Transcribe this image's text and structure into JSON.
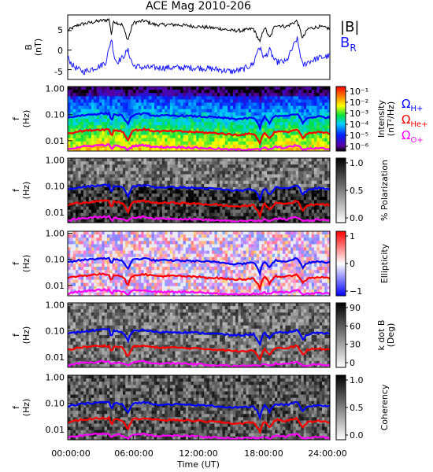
{
  "title": "ACE Mag 2010-206",
  "xaxis": {
    "label": "Time (UT)",
    "ticks": [
      "00:00:00",
      "06:00:00",
      "12:00:00",
      "18:00:00",
      "24:00:00"
    ],
    "range_hours": [
      0,
      24
    ]
  },
  "colors": {
    "B_total": "#000000",
    "B_R": "#1a1aff",
    "H_plus": "#0000ff",
    "He_plus": "#ff0000",
    "O_plus": "#ff00ff"
  },
  "chart_data": [
    {
      "panel": "magnetic-field",
      "type": "line",
      "ylabel_top": "B",
      "ylabel_bottom": "(nT)",
      "yticks": [
        "5",
        "0",
        "-5"
      ],
      "ylim": [
        -7.5,
        9
      ],
      "legend": [
        {
          "label": "|B|",
          "color": "#000000"
        },
        {
          "label": "B",
          "sub": "R",
          "color": "#1a1aff"
        }
      ],
      "series": [
        {
          "name": "|B|",
          "x_hours": [
            0,
            1,
            2,
            3,
            3.8,
            4,
            4.2,
            4.5,
            5,
            5.5,
            6,
            7,
            8,
            10,
            12,
            14,
            15,
            16,
            17,
            17.6,
            18,
            18.5,
            19,
            20,
            21,
            21.5,
            22,
            23,
            24
          ],
          "values": [
            5,
            6.5,
            7,
            7.5,
            7.8,
            4,
            7.5,
            7,
            6.5,
            2.5,
            7,
            7.5,
            6.5,
            6.5,
            6,
            5.5,
            5,
            5,
            5.5,
            2,
            6,
            3,
            6.5,
            6,
            7.5,
            3,
            5.5,
            6,
            5.5
          ]
        },
        {
          "name": "B_R",
          "x_hours": [
            0,
            0.5,
            1,
            1.5,
            2,
            2.5,
            3,
            3.5,
            4,
            4.3,
            4.5,
            5,
            5.5,
            6,
            7,
            8,
            10,
            12,
            14,
            15,
            16,
            17,
            17.5,
            18,
            18.5,
            19,
            20,
            21,
            21.5,
            22,
            23,
            24
          ],
          "values": [
            -2,
            -4,
            -5,
            -5.5,
            -5,
            -4.5,
            -4,
            -3,
            3,
            -2,
            -3,
            -2,
            0,
            -4,
            -4.5,
            -4.5,
            -4.5,
            -4.5,
            -5,
            -5.5,
            -5,
            -3.5,
            1,
            -2,
            0,
            -3,
            -3,
            3,
            -4,
            -3,
            -2,
            -1.5
          ]
        }
      ]
    },
    {
      "panel": "intensity",
      "type": "heatmap",
      "ylabel_top": "f",
      "ylabel_bottom": "(Hz)",
      "ylim_log": [
        0.004,
        1.2
      ],
      "yticks": [
        "1.00",
        "0.10",
        "0.01"
      ],
      "colorbar": {
        "label_line1": "Intensity",
        "label_line2": "(nT²/Hz)",
        "ticks": [
          "10⁻¹",
          "10⁻²",
          "10⁻³",
          "10⁻⁴",
          "10⁻⁵",
          "10⁻⁶"
        ],
        "scale": "rainbow"
      },
      "gyrofrequency_legend": [
        {
          "label": "Ω",
          "sub": "H+",
          "color": "#0000ff"
        },
        {
          "label": "Ω",
          "sub": "He+",
          "color": "#ff0000"
        },
        {
          "label": "Ω",
          "sub": "O+",
          "color": "#ff00ff"
        }
      ]
    },
    {
      "panel": "polarization",
      "type": "heatmap",
      "ylabel_top": "f",
      "ylabel_bottom": "(Hz)",
      "yticks": [
        "1.00",
        "0.10",
        "0.01"
      ],
      "colorbar": {
        "label": "% Polarization",
        "ticks": [
          "1.0",
          "0.5",
          "0.0"
        ],
        "scale": "gray"
      }
    },
    {
      "panel": "ellipticity",
      "type": "heatmap",
      "ylabel_top": "f",
      "ylabel_bottom": "(Hz)",
      "yticks": [
        "1.00",
        "0.10",
        "0.01"
      ],
      "colorbar": {
        "label": "Ellipticity",
        "ticks": [
          "1",
          "0",
          "−1"
        ],
        "scale": "red-white-blue"
      }
    },
    {
      "panel": "k-dot-b",
      "type": "heatmap",
      "ylabel_top": "f",
      "ylabel_bottom": "(Hz)",
      "yticks": [
        "1.00",
        "0.10",
        "0.01"
      ],
      "colorbar": {
        "label_line1": "k dot B",
        "label_line2": "(Deg)",
        "ticks": [
          "90",
          "60",
          "30",
          "0"
        ],
        "scale": "gray"
      }
    },
    {
      "panel": "coherency",
      "type": "heatmap",
      "ylabel_top": "f",
      "ylabel_bottom": "(Hz)",
      "yticks": [
        "1.00",
        "0.10",
        "0.01"
      ],
      "colorbar": {
        "label": "Coherency",
        "ticks": [
          "1.0",
          "0.5",
          "0.0"
        ],
        "scale": "gray"
      }
    }
  ],
  "gyrofrequency_lines": {
    "x_hours": [
      0,
      1,
      2,
      3,
      3.8,
      4,
      4.2,
      4.5,
      5,
      5.5,
      6,
      7,
      8,
      10,
      12,
      14,
      15,
      16,
      17,
      17.6,
      18,
      18.5,
      19,
      20,
      21,
      21.5,
      22,
      23,
      24
    ],
    "H_plus_hz": [
      0.076,
      0.091,
      0.1,
      0.11,
      0.11,
      0.053,
      0.1,
      0.1,
      0.091,
      0.038,
      0.1,
      0.11,
      0.091,
      0.091,
      0.085,
      0.076,
      0.069,
      0.069,
      0.076,
      0.03,
      0.085,
      0.046,
      0.091,
      0.085,
      0.11,
      0.046,
      0.076,
      0.085,
      0.076
    ],
    "He_plus_hz": [
      0.019,
      0.023,
      0.025,
      0.027,
      0.027,
      0.013,
      0.025,
      0.025,
      0.023,
      0.0095,
      0.025,
      0.027,
      0.023,
      0.023,
      0.021,
      0.019,
      0.017,
      0.017,
      0.019,
      0.0075,
      0.021,
      0.0115,
      0.023,
      0.021,
      0.027,
      0.0115,
      0.019,
      0.021,
      0.019
    ],
    "O_plus_hz": [
      0.0048,
      0.0057,
      0.0062,
      0.0068,
      0.0068,
      0.0045,
      0.0062,
      0.0062,
      0.0057,
      0.0045,
      0.0062,
      0.0068,
      0.0057,
      0.0057,
      0.0053,
      0.0048,
      0.0045,
      0.0045,
      0.0048,
      0.0045,
      0.0053,
      0.0045,
      0.0057,
      0.0053,
      0.0068,
      0.0045,
      0.0048,
      0.0053,
      0.0048
    ]
  }
}
